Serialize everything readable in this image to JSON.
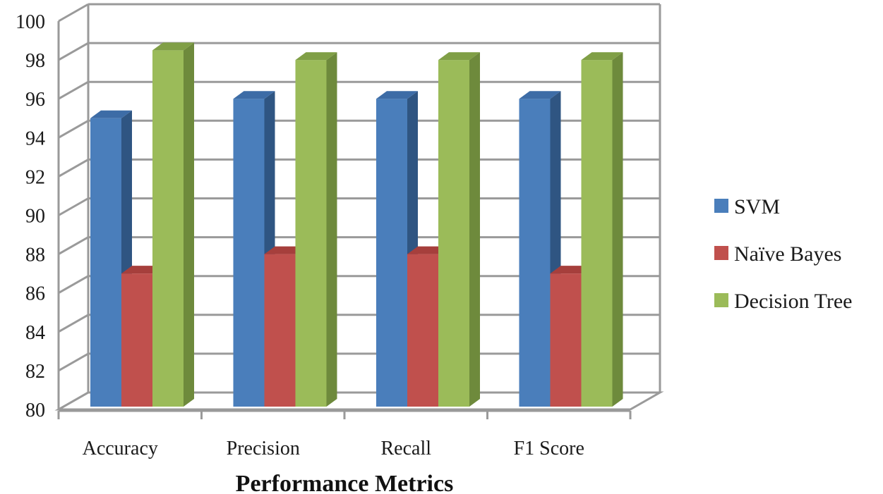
{
  "chart_data": {
    "type": "bar",
    "title": "",
    "xlabel": "Performance Metrics",
    "ylabel": "",
    "ylim": [
      80,
      100
    ],
    "ytick_step": 2,
    "yticks": [
      "80",
      "82",
      "84",
      "86",
      "88",
      "90",
      "92",
      "94",
      "96",
      "98",
      "100"
    ],
    "grid": true,
    "legend_position": "right",
    "categories": [
      "Accuracy",
      "Precision",
      "Recall",
      "F1 Score"
    ],
    "series": [
      {
        "name": "SVM",
        "values": [
          95,
          96,
          96,
          96
        ],
        "color": "#4a7ebb",
        "side_color": "#2f5582",
        "top_color": "#3d6ca6"
      },
      {
        "name": "Naïve Bayes",
        "values": [
          87,
          88,
          88,
          87
        ],
        "color": "#c0504d",
        "side_color": "#8c3835",
        "top_color": "#a63f3c"
      },
      {
        "name": "Decision Tree",
        "values": [
          98.5,
          98,
          98,
          98
        ],
        "color": "#9bbb59",
        "side_color": "#6e8a3c",
        "top_color": "#809f46"
      }
    ]
  }
}
